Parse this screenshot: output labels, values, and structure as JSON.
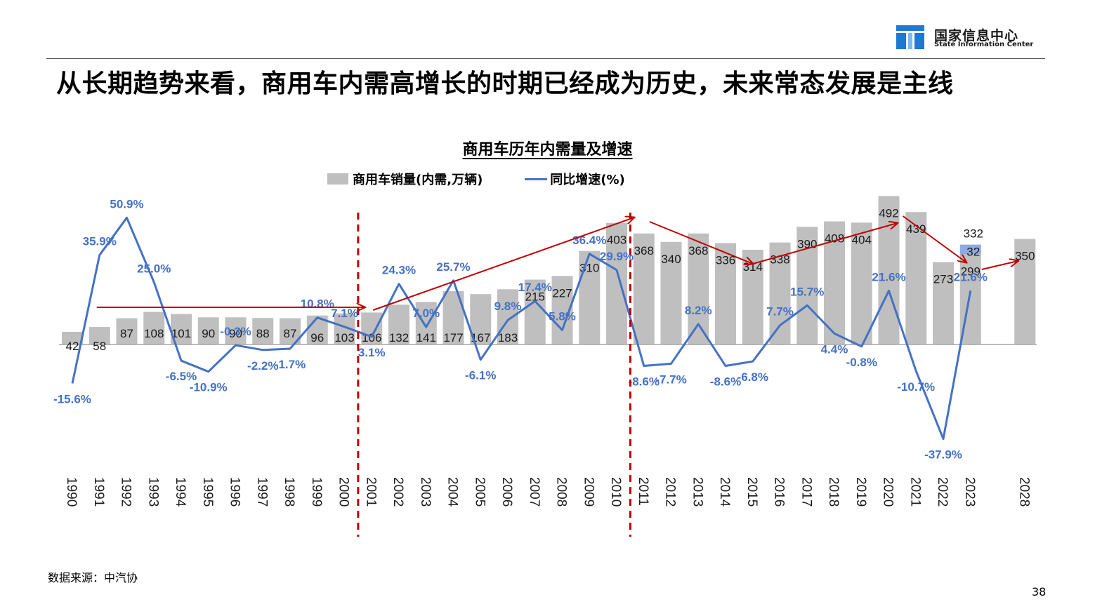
{
  "header": {
    "logo_cn": "国家信息中心",
    "logo_en": "State Information Center",
    "headline": "从长期趋势来看，商用车内需高增长的时期已经成为历史，未来常态发展是主线"
  },
  "footer": {
    "source": "数据来源：中汽协",
    "page_number": "38"
  },
  "colors": {
    "bar": "#bfbfbf",
    "bar_highlight": "#8faadc",
    "line": "#4472c4",
    "label_line": "#4472c4",
    "arrow": "#c00000",
    "divider": "#c00000"
  },
  "chart_data": {
    "type": "bar+line",
    "title": "商用车历年内需量及增速",
    "legend_placement": "top-center",
    "grid": false,
    "categories": [
      "1990",
      "1991",
      "1992",
      "1993",
      "1994",
      "1995",
      "1996",
      "1997",
      "1998",
      "1999",
      "2000",
      "2001",
      "2002",
      "2003",
      "2004",
      "2005",
      "2006",
      "2007",
      "2008",
      "2009",
      "2010",
      "2011",
      "2012",
      "2013",
      "2014",
      "2015",
      "2016",
      "2017",
      "2018",
      "2019",
      "2020",
      "2021",
      "2022",
      "2023",
      "",
      "2028"
    ],
    "series": [
      {
        "name": "商用车销量(内需,万辆)",
        "type": "bar",
        "values": [
          42,
          58,
          87,
          108,
          101,
          90,
          90,
          88,
          87,
          96,
          103,
          106,
          132,
          141,
          177,
          167,
          183,
          215,
          227,
          310,
          403,
          368,
          340,
          368,
          336,
          314,
          338,
          390,
          408,
          404,
          492,
          439,
          273,
          299,
          null,
          350
        ],
        "labels": [
          "42",
          "58",
          "87",
          "108",
          "101",
          "90",
          "90",
          "88",
          "87",
          "96",
          "103",
          "106",
          "132",
          "141",
          "177",
          "167",
          "183",
          "215",
          "227",
          "310",
          "403",
          "368",
          "340",
          "368",
          "336",
          "314",
          "338",
          "390",
          "408",
          "404",
          "492",
          "439",
          "273",
          "299",
          "",
          "350"
        ],
        "stack_on_2023": {
          "value": 32,
          "label": "32",
          "total_label": "332"
        }
      },
      {
        "name": "同比增速(%)",
        "type": "line",
        "values": [
          -15.6,
          35.9,
          50.9,
          25.0,
          -6.5,
          -10.9,
          -0.3,
          -2.2,
          -1.7,
          10.8,
          7.1,
          3.1,
          24.3,
          7.0,
          25.7,
          -6.1,
          9.8,
          17.4,
          5.8,
          36.4,
          29.9,
          -8.6,
          -7.7,
          8.2,
          -8.6,
          -6.8,
          7.7,
          15.7,
          4.4,
          -0.8,
          21.6,
          -10.7,
          -37.9,
          21.6,
          null,
          null
        ],
        "labels": [
          "-15.6%",
          "35.9%",
          "50.9%",
          "25.0%",
          "-6.5%",
          "-10.9%",
          "-0.3%",
          "-2.2%",
          "-1.7%",
          "10.8%",
          "7.1%",
          "3.1%",
          "24.3%",
          "7.0%",
          "25.7%",
          "-6.1%",
          "9.8%",
          "17.4%",
          "5.8%",
          "36.4%",
          "29.9%",
          "-8.6%",
          "-7.7%",
          "8.2%",
          "-8.6%",
          "-6.8%",
          "7.7%",
          "15.7%",
          "4.4%",
          "-0.8%",
          "21.6%",
          "-10.7%",
          "-37.9%",
          "21.6%",
          "",
          ""
        ]
      }
    ],
    "bar_axis_range": [
      -230,
      570
    ],
    "line_axis_range": [
      -55,
      66
    ],
    "dividers_after": [
      "2000",
      "2010"
    ]
  }
}
